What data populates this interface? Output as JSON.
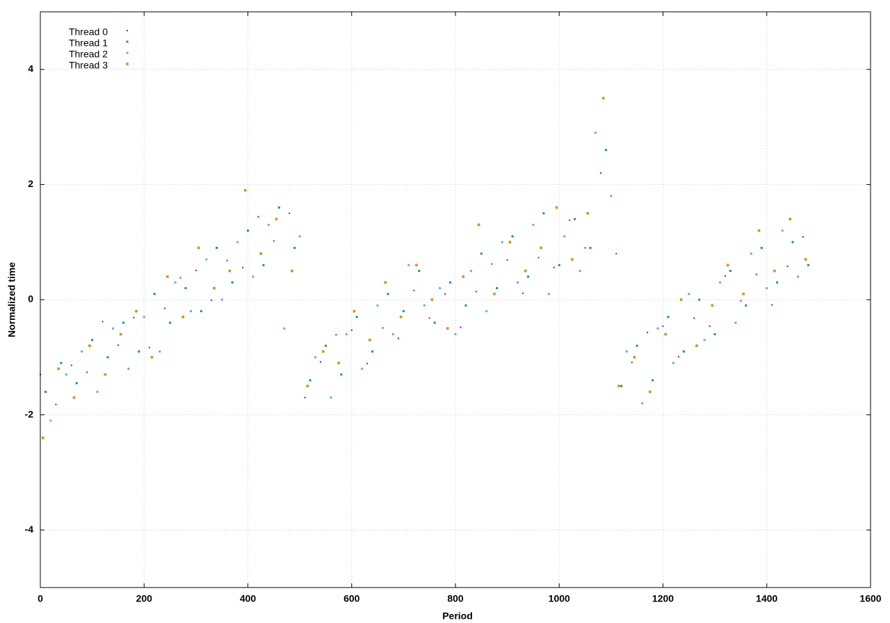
{
  "chart_data": {
    "type": "scatter",
    "xlabel": "Period",
    "ylabel": "Normalized time",
    "xlim": [
      0,
      1600
    ],
    "ylim": [
      -5,
      5
    ],
    "xticks": [
      0,
      200,
      400,
      600,
      800,
      1000,
      1200,
      1400,
      1600
    ],
    "yticks": [
      -4,
      -2,
      0,
      2,
      4
    ],
    "grid": true,
    "legend": "top-left",
    "series": [
      {
        "name": "Thread 0",
        "color": "#9400d3",
        "x": [
          0,
          30,
          60,
          90,
          120,
          150,
          180,
          210,
          240,
          270,
          300,
          330,
          360,
          390,
          420,
          450,
          480,
          510,
          540,
          570,
          600,
          630,
          660,
          690,
          720,
          750,
          780,
          810,
          840,
          870,
          900,
          930,
          960,
          990,
          1020,
          1050,
          1080,
          1110,
          1140,
          1170,
          1200,
          1230,
          1260,
          1290,
          1320,
          1350,
          1380,
          1410,
          1440,
          1470
        ],
        "values": [
          -1.3,
          -1.82,
          -1.14,
          -1.26,
          -0.38,
          -0.79,
          -0.31,
          -0.83,
          -0.15,
          0.38,
          0.51,
          -0.01,
          0.68,
          0.56,
          1.44,
          1.02,
          1.5,
          -1.7,
          -1.08,
          -0.61,
          -0.53,
          -1.11,
          -0.49,
          -0.67,
          0.16,
          -0.32,
          0.1,
          -0.48,
          0.14,
          0.62,
          0.69,
          0.11,
          0.73,
          0.56,
          1.38,
          0.9,
          2.2,
          0.8,
          -1.09,
          -0.57,
          -0.46,
          -0.99,
          -0.32,
          -0.46,
          0.41,
          -0.02,
          0.44,
          -0.09,
          0.58,
          1.09
        ]
      },
      {
        "name": "Thread 1",
        "color": "#009e73",
        "x": [
          10,
          40,
          70,
          100,
          130,
          160,
          190,
          220,
          250,
          280,
          310,
          340,
          370,
          400,
          430,
          460,
          490,
          520,
          550,
          580,
          610,
          640,
          670,
          700,
          730,
          760,
          790,
          820,
          850,
          880,
          910,
          940,
          970,
          1000,
          1030,
          1060,
          1090,
          1120,
          1150,
          1180,
          1210,
          1240,
          1270,
          1300,
          1330,
          1360,
          1390,
          1420,
          1450,
          1480
        ],
        "values": [
          -1.6,
          -1.1,
          -1.45,
          -0.7,
          -1.0,
          -0.4,
          -0.9,
          0.1,
          -0.4,
          0.2,
          -0.2,
          0.9,
          0.3,
          1.2,
          0.6,
          1.6,
          0.9,
          -1.4,
          -0.8,
          -1.3,
          -0.3,
          -0.9,
          0.1,
          -0.2,
          0.5,
          -0.4,
          0.3,
          -0.1,
          0.8,
          0.2,
          1.1,
          0.4,
          1.5,
          0.6,
          1.4,
          0.9,
          2.6,
          -1.5,
          -0.8,
          -1.4,
          -0.3,
          -0.9,
          0.0,
          -0.6,
          0.5,
          -0.1,
          0.9,
          0.3,
          1.0,
          0.6
        ]
      },
      {
        "name": "Thread 2",
        "color": "#56b4e9",
        "x": [
          20,
          50,
          80,
          110,
          140,
          170,
          200,
          230,
          260,
          290,
          320,
          350,
          380,
          410,
          440,
          470,
          500,
          530,
          560,
          590,
          620,
          650,
          680,
          710,
          740,
          770,
          800,
          830,
          860,
          890,
          920,
          950,
          980,
          1010,
          1040,
          1070,
          1100,
          1130,
          1160,
          1190,
          1220,
          1250,
          1280,
          1310,
          1340,
          1370,
          1400,
          1430,
          1460
        ],
        "values": [
          -2.1,
          -1.3,
          -0.9,
          -1.6,
          -0.5,
          -1.2,
          -0.3,
          -0.9,
          0.3,
          -0.2,
          0.7,
          0.0,
          1.0,
          0.4,
          1.3,
          -0.5,
          1.1,
          -1.0,
          -1.7,
          -0.6,
          -1.2,
          -0.1,
          -0.6,
          0.6,
          -0.1,
          0.2,
          -0.6,
          0.5,
          -0.2,
          1.0,
          0.3,
          1.3,
          0.1,
          1.1,
          0.5,
          2.9,
          1.8,
          -0.9,
          -1.8,
          -0.5,
          -1.1,
          0.1,
          -0.7,
          0.3,
          -0.4,
          0.8,
          0.2,
          1.2,
          0.4
        ]
      },
      {
        "name": "Thread 3",
        "color": "#e69f00",
        "x": [
          5,
          35,
          65,
          95,
          125,
          155,
          185,
          215,
          245,
          275,
          305,
          335,
          365,
          395,
          425,
          455,
          485,
          515,
          545,
          575,
          605,
          635,
          665,
          695,
          725,
          755,
          785,
          815,
          845,
          875,
          905,
          935,
          965,
          995,
          1025,
          1055,
          1085,
          1115,
          1145,
          1175,
          1205,
          1235,
          1265,
          1295,
          1325,
          1355,
          1385,
          1415,
          1445,
          1475
        ],
        "values": [
          -2.4,
          -1.2,
          -1.7,
          -0.8,
          -1.3,
          -0.6,
          -0.2,
          -1.0,
          0.4,
          -0.3,
          0.9,
          0.2,
          0.5,
          1.9,
          0.8,
          1.4,
          0.5,
          -1.5,
          -0.9,
          -1.1,
          -0.2,
          -0.7,
          0.3,
          -0.3,
          0.6,
          0.0,
          -0.5,
          0.4,
          1.3,
          0.1,
          1.0,
          0.5,
          0.9,
          1.6,
          0.7,
          1.5,
          3.5,
          -1.5,
          -1.0,
          -1.6,
          -0.6,
          0.0,
          -0.8,
          -0.1,
          0.6,
          0.1,
          1.2,
          0.5,
          1.4,
          0.7
        ]
      }
    ]
  }
}
